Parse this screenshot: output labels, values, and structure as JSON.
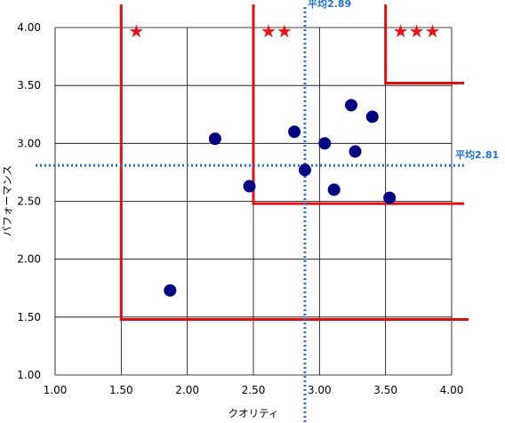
{
  "chart_data": {
    "type": "scatter",
    "title": "",
    "xlabel": "クオリティ",
    "ylabel": "パフォーマンス",
    "xlim": [
      1.0,
      4.0
    ],
    "ylim": [
      1.0,
      4.0
    ],
    "xticks": [
      "1.00",
      "1.50",
      "2.00",
      "2.50",
      "3.00",
      "3.50",
      "4.00"
    ],
    "yticks": [
      "1.00",
      "1.50",
      "2.00",
      "2.50",
      "3.00",
      "3.50",
      "4.00"
    ],
    "grid": true,
    "legend": "none",
    "points": [
      {
        "x": 1.87,
        "y": 1.73
      },
      {
        "x": 2.21,
        "y": 3.04
      },
      {
        "x": 2.47,
        "y": 2.63
      },
      {
        "x": 2.81,
        "y": 3.1
      },
      {
        "x": 2.89,
        "y": 2.77
      },
      {
        "x": 3.04,
        "y": 3.0
      },
      {
        "x": 3.11,
        "y": 2.6
      },
      {
        "x": 3.24,
        "y": 3.33
      },
      {
        "x": 3.27,
        "y": 2.93
      },
      {
        "x": 3.4,
        "y": 3.23
      },
      {
        "x": 3.53,
        "y": 2.53
      }
    ],
    "average_x": {
      "value": 2.89,
      "label": "平均2.89"
    },
    "average_y": {
      "value": 2.81,
      "label": "平均2.81"
    },
    "tiers": [
      {
        "stars": "★",
        "x_from": 1.5,
        "y_from": 1.48
      },
      {
        "stars": "★★",
        "x_from": 2.5,
        "y_from": 2.48
      },
      {
        "stars": "★★★",
        "x_from": 3.5,
        "y_from": 3.52
      }
    ],
    "colors": {
      "point": "#000080",
      "average_line": "#1e6fd9",
      "tier_line": "#e01010",
      "star": "#ee1111",
      "grid": "#000000"
    }
  }
}
